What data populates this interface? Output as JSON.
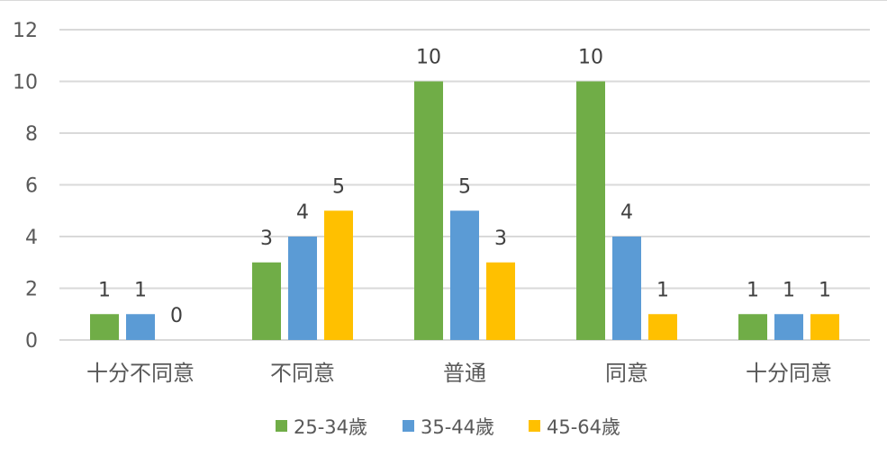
{
  "chart_data": {
    "type": "bar",
    "categories": [
      "十分不同意",
      "不同意",
      "普通",
      "同意",
      "十分同意"
    ],
    "series": [
      {
        "name": "25-34歲",
        "values": [
          1,
          3,
          10,
          10,
          1
        ],
        "color": "#70ad47"
      },
      {
        "name": "35-44歲",
        "values": [
          1,
          4,
          5,
          4,
          1
        ],
        "color": "#5b9bd5"
      },
      {
        "name": "45-64歲",
        "values": [
          0,
          5,
          3,
          1,
          1
        ],
        "color": "#ffc000"
      }
    ],
    "ylim": [
      0,
      12
    ],
    "yticks": [
      "0",
      "2",
      "4",
      "6",
      "8",
      "10",
      "12"
    ],
    "grid": true,
    "legend": "bottom",
    "data_labels": true,
    "gridline_color": "#d9d9d9"
  }
}
